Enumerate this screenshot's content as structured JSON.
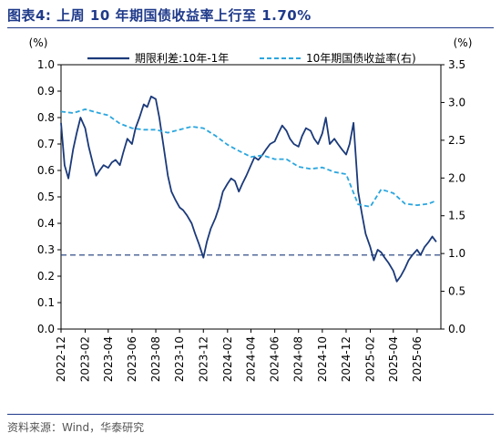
{
  "header": {
    "title": "图表4:   上周 10 年期国债收益率上行至 1.70%"
  },
  "footer": {
    "source": "资料来源：Wind，华泰研究"
  },
  "colors": {
    "spread": "#1b3a7a",
    "yield": "#2aa6df",
    "ref": "#1b3a7a",
    "title": "#1f3a8a"
  },
  "chart_data": {
    "type": "line",
    "left_axis": {
      "unit": "(%)",
      "min": 0.0,
      "max": 1.0,
      "ticks": [
        "0.0",
        "0.1",
        "0.2",
        "0.3",
        "0.4",
        "0.5",
        "0.6",
        "0.7",
        "0.8",
        "0.9",
        "1.0"
      ]
    },
    "right_axis": {
      "unit": "(%)",
      "min": 0.0,
      "max": 3.5,
      "ticks": [
        "0.0",
        "0.5",
        "1.0",
        "1.5",
        "2.0",
        "2.5",
        "3.0",
        "3.5"
      ]
    },
    "x_ticks": [
      "2022-12",
      "2023-02",
      "2023-04",
      "2023-06",
      "2023-08",
      "2023-10",
      "2023-12",
      "2024-02",
      "2024-04",
      "2024-06",
      "2024-08",
      "2024-10",
      "2024-12",
      "2025-02",
      "2025-04",
      "2025-06"
    ],
    "x_range": [
      "2022-12-01",
      "2025-08-01"
    ],
    "legend": {
      "placement": "top",
      "entries": [
        "期限利差:10年-1年",
        "10年期国债收益率(右)"
      ]
    },
    "reference_line": {
      "axis": "left",
      "value": 0.28,
      "style": "dashed"
    },
    "series": [
      {
        "name": "期限利差:10年-1年",
        "axis": "left",
        "style": "solid",
        "points": [
          [
            "2022-12-01",
            0.78
          ],
          [
            "2022-12-10",
            0.62
          ],
          [
            "2022-12-20",
            0.57
          ],
          [
            "2023-01-01",
            0.68
          ],
          [
            "2023-01-10",
            0.74
          ],
          [
            "2023-01-20",
            0.8
          ],
          [
            "2023-02-01",
            0.76
          ],
          [
            "2023-02-10",
            0.69
          ],
          [
            "2023-02-20",
            0.63
          ],
          [
            "2023-03-01",
            0.58
          ],
          [
            "2023-03-10",
            0.6
          ],
          [
            "2023-03-20",
            0.62
          ],
          [
            "2023-04-01",
            0.61
          ],
          [
            "2023-04-10",
            0.63
          ],
          [
            "2023-04-20",
            0.64
          ],
          [
            "2023-05-01",
            0.62
          ],
          [
            "2023-05-10",
            0.67
          ],
          [
            "2023-05-20",
            0.72
          ],
          [
            "2023-06-01",
            0.7
          ],
          [
            "2023-06-10",
            0.76
          ],
          [
            "2023-06-20",
            0.8
          ],
          [
            "2023-07-01",
            0.85
          ],
          [
            "2023-07-10",
            0.84
          ],
          [
            "2023-07-20",
            0.88
          ],
          [
            "2023-08-01",
            0.87
          ],
          [
            "2023-08-10",
            0.8
          ],
          [
            "2023-08-20",
            0.7
          ],
          [
            "2023-09-01",
            0.58
          ],
          [
            "2023-09-10",
            0.52
          ],
          [
            "2023-09-20",
            0.49
          ],
          [
            "2023-10-01",
            0.46
          ],
          [
            "2023-10-10",
            0.45
          ],
          [
            "2023-10-20",
            0.43
          ],
          [
            "2023-11-01",
            0.4
          ],
          [
            "2023-11-10",
            0.36
          ],
          [
            "2023-11-20",
            0.32
          ],
          [
            "2023-12-01",
            0.27
          ],
          [
            "2023-12-10",
            0.33
          ],
          [
            "2023-12-20",
            0.38
          ],
          [
            "2024-01-01",
            0.42
          ],
          [
            "2024-01-10",
            0.46
          ],
          [
            "2024-01-20",
            0.52
          ],
          [
            "2024-02-01",
            0.55
          ],
          [
            "2024-02-10",
            0.57
          ],
          [
            "2024-02-20",
            0.56
          ],
          [
            "2024-03-01",
            0.52
          ],
          [
            "2024-03-10",
            0.55
          ],
          [
            "2024-03-20",
            0.58
          ],
          [
            "2024-04-01",
            0.62
          ],
          [
            "2024-04-10",
            0.65
          ],
          [
            "2024-04-20",
            0.64
          ],
          [
            "2024-05-01",
            0.66
          ],
          [
            "2024-05-10",
            0.68
          ],
          [
            "2024-05-20",
            0.7
          ],
          [
            "2024-06-01",
            0.71
          ],
          [
            "2024-06-10",
            0.74
          ],
          [
            "2024-06-20",
            0.77
          ],
          [
            "2024-07-01",
            0.75
          ],
          [
            "2024-07-10",
            0.72
          ],
          [
            "2024-07-20",
            0.7
          ],
          [
            "2024-08-01",
            0.69
          ],
          [
            "2024-08-10",
            0.73
          ],
          [
            "2024-08-20",
            0.76
          ],
          [
            "2024-09-01",
            0.75
          ],
          [
            "2024-09-10",
            0.72
          ],
          [
            "2024-09-20",
            0.7
          ],
          [
            "2024-10-01",
            0.74
          ],
          [
            "2024-10-10",
            0.8
          ],
          [
            "2024-10-20",
            0.7
          ],
          [
            "2024-11-01",
            0.72
          ],
          [
            "2024-11-10",
            0.7
          ],
          [
            "2024-11-20",
            0.68
          ],
          [
            "2024-12-01",
            0.66
          ],
          [
            "2024-12-10",
            0.7
          ],
          [
            "2024-12-20",
            0.78
          ],
          [
            "2025-01-01",
            0.52
          ],
          [
            "2025-01-10",
            0.44
          ],
          [
            "2025-01-20",
            0.36
          ],
          [
            "2025-02-01",
            0.31
          ],
          [
            "2025-02-10",
            0.26
          ],
          [
            "2025-02-20",
            0.3
          ],
          [
            "2025-03-01",
            0.29
          ],
          [
            "2025-03-10",
            0.27
          ],
          [
            "2025-03-20",
            0.25
          ],
          [
            "2025-04-01",
            0.22
          ],
          [
            "2025-04-10",
            0.18
          ],
          [
            "2025-04-20",
            0.2
          ],
          [
            "2025-05-01",
            0.23
          ],
          [
            "2025-05-10",
            0.26
          ],
          [
            "2025-05-20",
            0.28
          ],
          [
            "2025-06-01",
            0.3
          ],
          [
            "2025-06-10",
            0.28
          ],
          [
            "2025-06-20",
            0.31
          ],
          [
            "2025-07-01",
            0.33
          ],
          [
            "2025-07-10",
            0.35
          ],
          [
            "2025-07-20",
            0.33
          ]
        ]
      },
      {
        "name": "10年期国债收益率(右)",
        "axis": "right",
        "style": "dashed",
        "points": [
          [
            "2022-12-01",
            2.88
          ],
          [
            "2023-01-01",
            2.86
          ],
          [
            "2023-02-01",
            2.91
          ],
          [
            "2023-03-01",
            2.87
          ],
          [
            "2023-04-01",
            2.83
          ],
          [
            "2023-05-01",
            2.72
          ],
          [
            "2023-06-01",
            2.66
          ],
          [
            "2023-07-01",
            2.64
          ],
          [
            "2023-08-01",
            2.64
          ],
          [
            "2023-09-01",
            2.6
          ],
          [
            "2023-10-01",
            2.64
          ],
          [
            "2023-11-01",
            2.68
          ],
          [
            "2023-12-01",
            2.66
          ],
          [
            "2024-01-01",
            2.56
          ],
          [
            "2024-02-01",
            2.44
          ],
          [
            "2024-03-01",
            2.36
          ],
          [
            "2024-04-01",
            2.28
          ],
          [
            "2024-05-01",
            2.3
          ],
          [
            "2024-06-01",
            2.25
          ],
          [
            "2024-07-01",
            2.25
          ],
          [
            "2024-08-01",
            2.15
          ],
          [
            "2024-09-01",
            2.12
          ],
          [
            "2024-10-01",
            2.14
          ],
          [
            "2024-11-01",
            2.08
          ],
          [
            "2024-12-01",
            2.05
          ],
          [
            "2025-01-01",
            1.65
          ],
          [
            "2025-02-01",
            1.62
          ],
          [
            "2025-03-01",
            1.85
          ],
          [
            "2025-04-01",
            1.8
          ],
          [
            "2025-05-01",
            1.66
          ],
          [
            "2025-06-01",
            1.64
          ],
          [
            "2025-07-01",
            1.66
          ],
          [
            "2025-07-20",
            1.7
          ]
        ]
      }
    ]
  }
}
